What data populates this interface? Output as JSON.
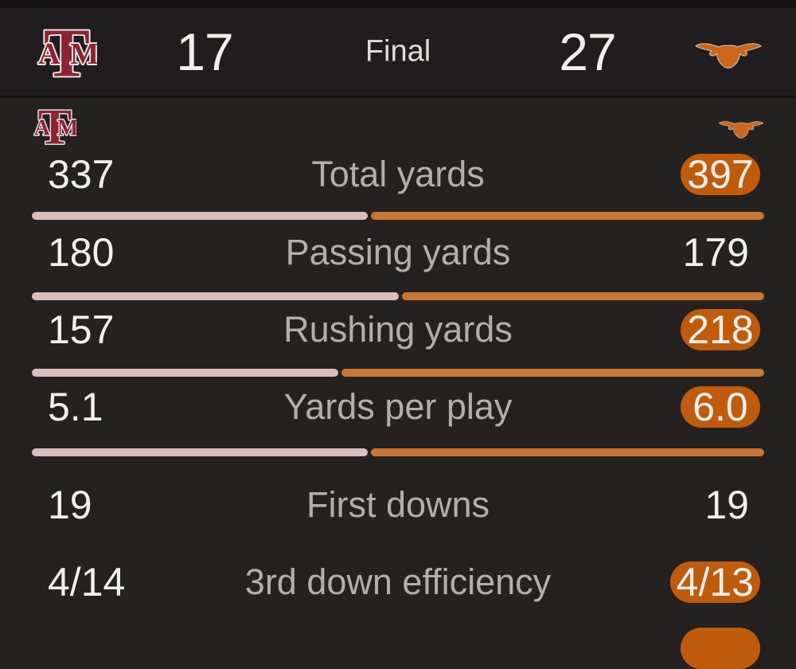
{
  "scoreboard": {
    "away_team": "Texas A&M Aggies",
    "away_score": "17",
    "status": "Final",
    "home_score": "27",
    "home_team": "Texas Longhorns"
  },
  "colors": {
    "pill-orange": "#bf5b0a",
    "bar-orange": "#c97731",
    "bar-pink": "#d9bebe",
    "aggies-maroon": "#8c2334",
    "longhorn-orange": "#ca671b"
  },
  "stats": {
    "rows": [
      {
        "away": "337",
        "label": "Total yards",
        "home": "397",
        "home_highlighted": true,
        "away_pct": 45.9
      },
      {
        "away": "180",
        "label": "Passing yards",
        "home": "179",
        "home_highlighted": false,
        "away_pct": 50.1
      },
      {
        "away": "157",
        "label": "Rushing yards",
        "home": "218",
        "home_highlighted": true,
        "away_pct": 41.9
      },
      {
        "away": "5.1",
        "label": "Yards per play",
        "home": "6.0",
        "home_highlighted": true,
        "away_pct": 45.9
      },
      {
        "away": "19",
        "label": "First downs",
        "home": "19",
        "home_highlighted": false
      },
      {
        "away": "4/14",
        "label": "3rd down efficiency",
        "home": "4/13",
        "home_highlighted": true
      }
    ]
  }
}
